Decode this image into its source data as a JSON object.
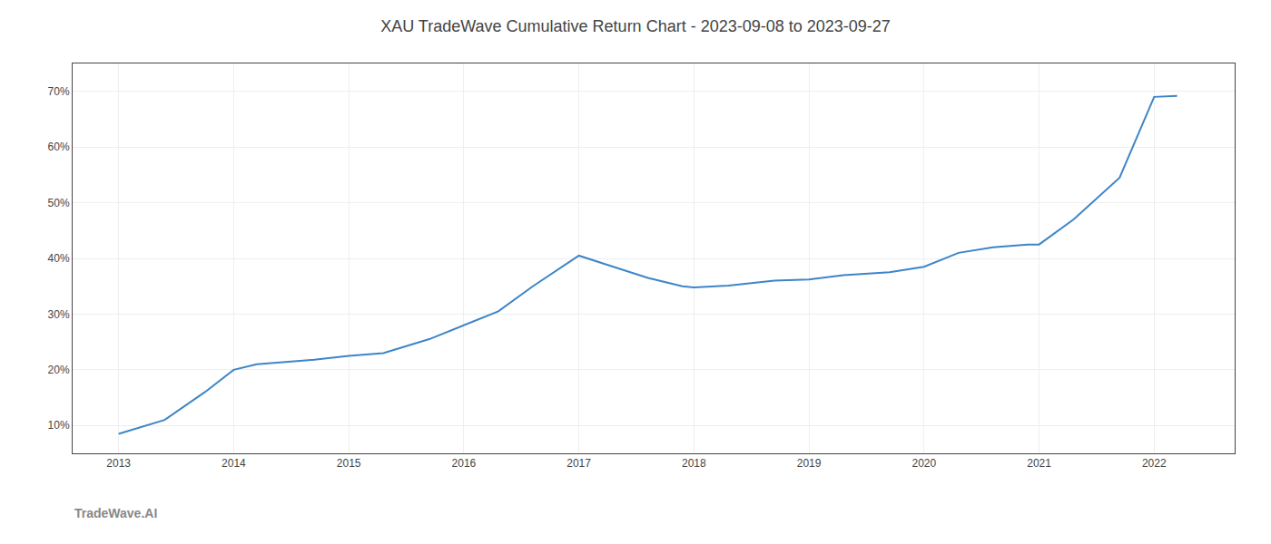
{
  "chart_data": {
    "type": "line",
    "title": "XAU TradeWave Cumulative Return Chart - 2023-09-08 to 2023-09-27",
    "annotations": [
      "TradeWave.AI"
    ],
    "x": [
      2013.0,
      2013.4,
      2013.75,
      2014.0,
      2014.2,
      2014.4,
      2014.7,
      2015.0,
      2015.3,
      2015.7,
      2016.0,
      2016.3,
      2016.6,
      2017.0,
      2017.3,
      2017.6,
      2017.9,
      2018.0,
      2018.3,
      2018.7,
      2019.0,
      2019.3,
      2019.7,
      2020.0,
      2020.3,
      2020.6,
      2020.9,
      2021.0,
      2021.3,
      2021.7,
      2022.0,
      2022.2
    ],
    "values": [
      8.5,
      11.0,
      16.0,
      20.0,
      21.0,
      21.3,
      21.8,
      22.5,
      23.0,
      25.5,
      28.0,
      30.5,
      35.0,
      40.5,
      38.5,
      36.5,
      35.0,
      34.8,
      35.1,
      36.0,
      36.2,
      37.0,
      37.5,
      38.5,
      41.0,
      42.0,
      42.5,
      42.5,
      47.0,
      54.5,
      69.0,
      69.2
    ],
    "color": "#3d85c8",
    "xlim": [
      2012.6,
      2022.7
    ],
    "xticks": [
      2013,
      2014,
      2015,
      2016,
      2017,
      2018,
      2019,
      2020,
      2021,
      2022
    ],
    "ylim": [
      5,
      75
    ],
    "yticks": [
      {
        "value": 10,
        "label": "10%"
      },
      {
        "value": 20,
        "label": "20%"
      },
      {
        "value": 30,
        "label": "30%"
      },
      {
        "value": 40,
        "label": "40%"
      },
      {
        "value": 50,
        "label": "50%"
      },
      {
        "value": 60,
        "label": "60%"
      },
      {
        "value": 70,
        "label": "70%"
      }
    ],
    "grid": true
  }
}
